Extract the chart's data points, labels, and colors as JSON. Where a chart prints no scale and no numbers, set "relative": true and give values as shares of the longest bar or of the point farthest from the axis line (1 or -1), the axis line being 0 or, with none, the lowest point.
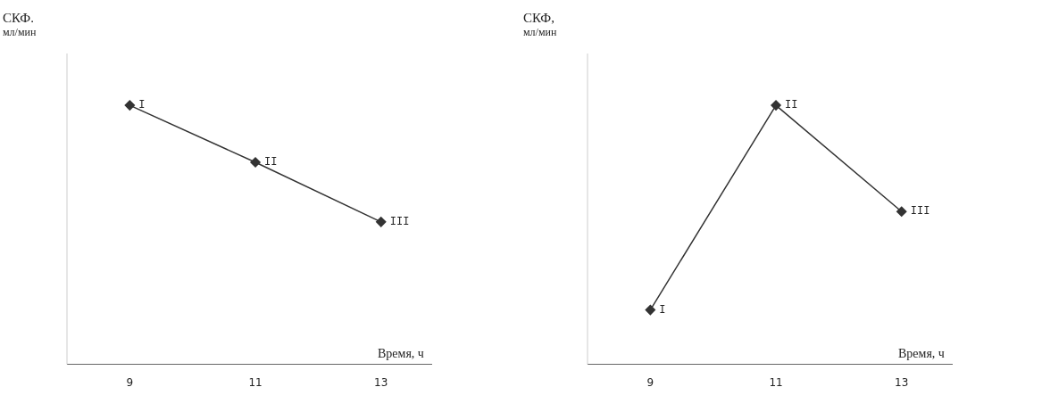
{
  "chart_data": [
    {
      "type": "line",
      "relative": true,
      "ylabel": "СКФ. мл/мин",
      "xlabel": "Время, ч",
      "x": [
        9,
        11,
        13
      ],
      "xlim": [
        8,
        13.8
      ],
      "xticks": [
        9,
        11,
        13
      ],
      "series": [
        {
          "color": "#333333",
          "values": [
            1,
            0.78,
            0.55
          ]
        }
      ],
      "marker": "diamond",
      "line_style": "solid",
      "grid": false,
      "legend": false,
      "annotations": [
        {
          "text": "I",
          "x": 9,
          "y": 1
        },
        {
          "text": "II",
          "x": 11,
          "y": 0.78
        },
        {
          "text": "III",
          "x": 13,
          "y": 0.55
        }
      ]
    },
    {
      "type": "line",
      "relative": true,
      "ylabel": "СКФ, мл/мин",
      "xlabel": "Время, ч",
      "x": [
        9,
        11,
        13
      ],
      "xlim": [
        8,
        13.8
      ],
      "xticks": [
        9,
        11,
        13
      ],
      "series": [
        {
          "color": "#333333",
          "values": [
            0.21,
            1,
            0.59
          ]
        }
      ],
      "marker": "diamond",
      "line_style": "solid",
      "grid": false,
      "legend": false,
      "annotations": [
        {
          "text": "I",
          "x": 9,
          "y": 0.21
        },
        {
          "text": "II",
          "x": 11,
          "y": 1
        },
        {
          "text": "III",
          "x": 13,
          "y": 0.59
        }
      ]
    }
  ]
}
